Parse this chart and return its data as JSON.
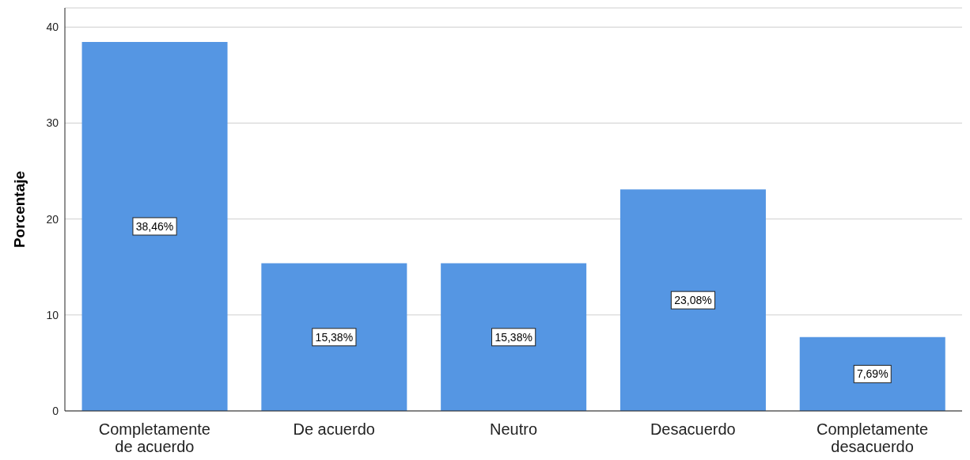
{
  "chart_data": {
    "type": "bar",
    "ylabel": "Porcentaje",
    "categories": [
      "Completamente de acuerdo",
      "De acuerdo",
      "Neutro",
      "Desacuerdo",
      "Completamente desacuerdo"
    ],
    "values": [
      38.46,
      15.38,
      15.38,
      23.08,
      7.69
    ],
    "value_labels": [
      "38,46%",
      "15,38%",
      "15,38%",
      "23,08%",
      "7,69%"
    ],
    "color": "#5596e3",
    "ylim": [
      0,
      42
    ],
    "yticks": [
      0,
      10,
      20,
      30,
      40
    ],
    "grid": "y"
  }
}
